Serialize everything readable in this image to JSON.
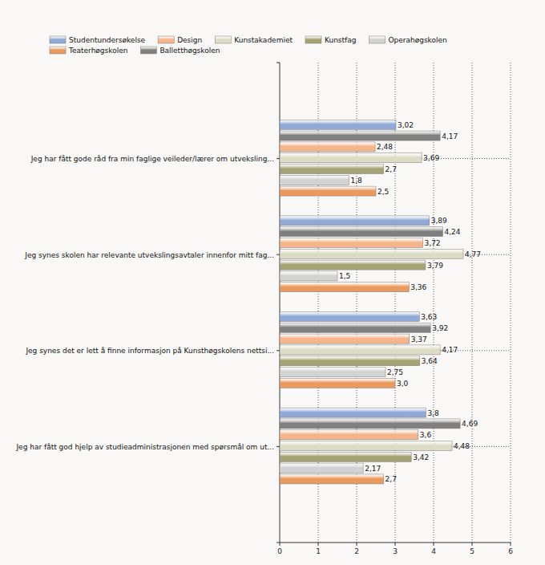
{
  "chart_data": {
    "type": "bar",
    "orientation": "horizontal",
    "categories": [
      "Jeg har fått gode råd fra min faglige veileder/lærer om utveksling...",
      "Jeg synes skolen har relevante utvekslingsavtaler innenfor mitt fag...",
      "Jeg synes det er lett å finne informasjon på Kunsthøgskolens nettsi...",
      "Jeg har fått god hjelp av studieadministrasjonen med spørsmål om ut..."
    ],
    "series": [
      {
        "name": "Studentundersøkelse",
        "color": "#91a9d6",
        "values": [
          3.02,
          3.89,
          3.63,
          3.8
        ],
        "value_labels": [
          "3,02",
          "3,89",
          "3,63",
          "3,8"
        ]
      },
      {
        "name": "Design",
        "color": "#f5b48a",
        "values": [
          2.48,
          3.72,
          3.37,
          3.6
        ],
        "value_labels": [
          "2,48",
          "3,72",
          "3,37",
          "3,6"
        ]
      },
      {
        "name": "Kunstakademiet",
        "color": "#dcdcc6",
        "values": [
          3.69,
          4.77,
          4.17,
          4.48
        ],
        "value_labels": [
          "3,69",
          "4,77",
          "4,17",
          "4,48"
        ]
      },
      {
        "name": "Kunstfag",
        "color": "#a5a373",
        "values": [
          2.7,
          3.79,
          3.64,
          3.42
        ],
        "value_labels": [
          "2,7",
          "3,79",
          "3,64",
          "3,42"
        ]
      },
      {
        "name": "Operahøgskolen",
        "color": "#d3d3d3",
        "values": [
          1.8,
          1.5,
          2.75,
          2.17
        ],
        "value_labels": [
          "1,8",
          "1,5",
          "2,75",
          "2,17"
        ]
      },
      {
        "name": "Teaterhøgskolen",
        "color": "#ea9a5f",
        "values": [
          2.5,
          3.36,
          3.0,
          2.7
        ],
        "value_labels": [
          "2,5",
          "3,36",
          "3,0",
          "2,7"
        ]
      },
      {
        "name": "Balletthøgskolen",
        "color": "#808080",
        "values": [
          4.17,
          4.24,
          3.92,
          4.69
        ],
        "value_labels": [
          "4,17",
          "4,24",
          "3,92",
          "4,69"
        ]
      }
    ],
    "xlim": [
      0,
      6
    ],
    "xticks": [
      0,
      1,
      2,
      3,
      4,
      5,
      6
    ],
    "grid": true,
    "data_labels": true,
    "legend": "top"
  }
}
